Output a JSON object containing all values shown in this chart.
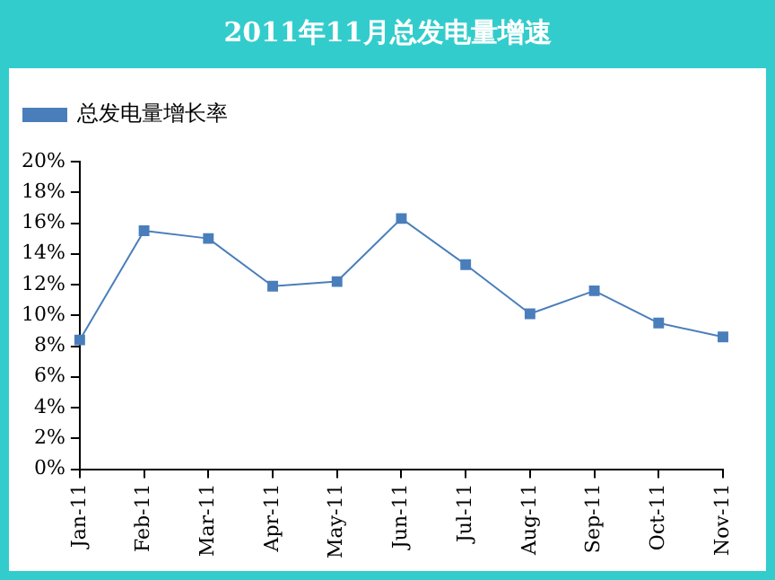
{
  "chart_data": {
    "type": "line",
    "title": "2011年11月总发电量增速",
    "categories": [
      "Jan-11",
      "Feb-11",
      "Mar-11",
      "Apr-11",
      "May-11",
      "Jun-11",
      "Jul-11",
      "Aug-11",
      "Sep-11",
      "Oct-11",
      "Nov-11"
    ],
    "series": [
      {
        "name": "总发电量增长率",
        "color": "#4a7ebb",
        "values": [
          8.4,
          15.5,
          15.0,
          11.9,
          12.2,
          16.3,
          13.3,
          10.1,
          11.6,
          9.5,
          8.6
        ]
      }
    ],
    "ylim": [
      0,
      20
    ],
    "yticks": [
      {
        "value": 0,
        "label": "0%"
      },
      {
        "value": 2,
        "label": "2%"
      },
      {
        "value": 4,
        "label": "4%"
      },
      {
        "value": 6,
        "label": "6%"
      },
      {
        "value": 8,
        "label": "8%"
      },
      {
        "value": 10,
        "label": "10%"
      },
      {
        "value": 12,
        "label": "12%"
      },
      {
        "value": 14,
        "label": "14%"
      },
      {
        "value": 16,
        "label": "16%"
      },
      {
        "value": 18,
        "label": "18%"
      },
      {
        "value": 20,
        "label": "20%"
      }
    ],
    "grid": false,
    "legend": "top left",
    "marker": "square",
    "line_style": "solid"
  }
}
